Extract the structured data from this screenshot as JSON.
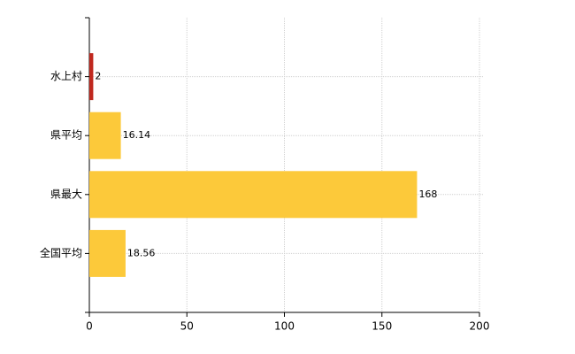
{
  "chart_data": {
    "type": "barh",
    "categories": [
      "水上村",
      "県平均",
      "県最大",
      "全国平均"
    ],
    "values": [
      2,
      16.14,
      168,
      18.56
    ],
    "colors": [
      "#c0281e",
      "#fcc93a",
      "#fcc93a",
      "#fcc93a"
    ],
    "xlim": [
      0,
      200
    ],
    "xticks": [
      0,
      50,
      100,
      150,
      200
    ],
    "grid": true
  }
}
